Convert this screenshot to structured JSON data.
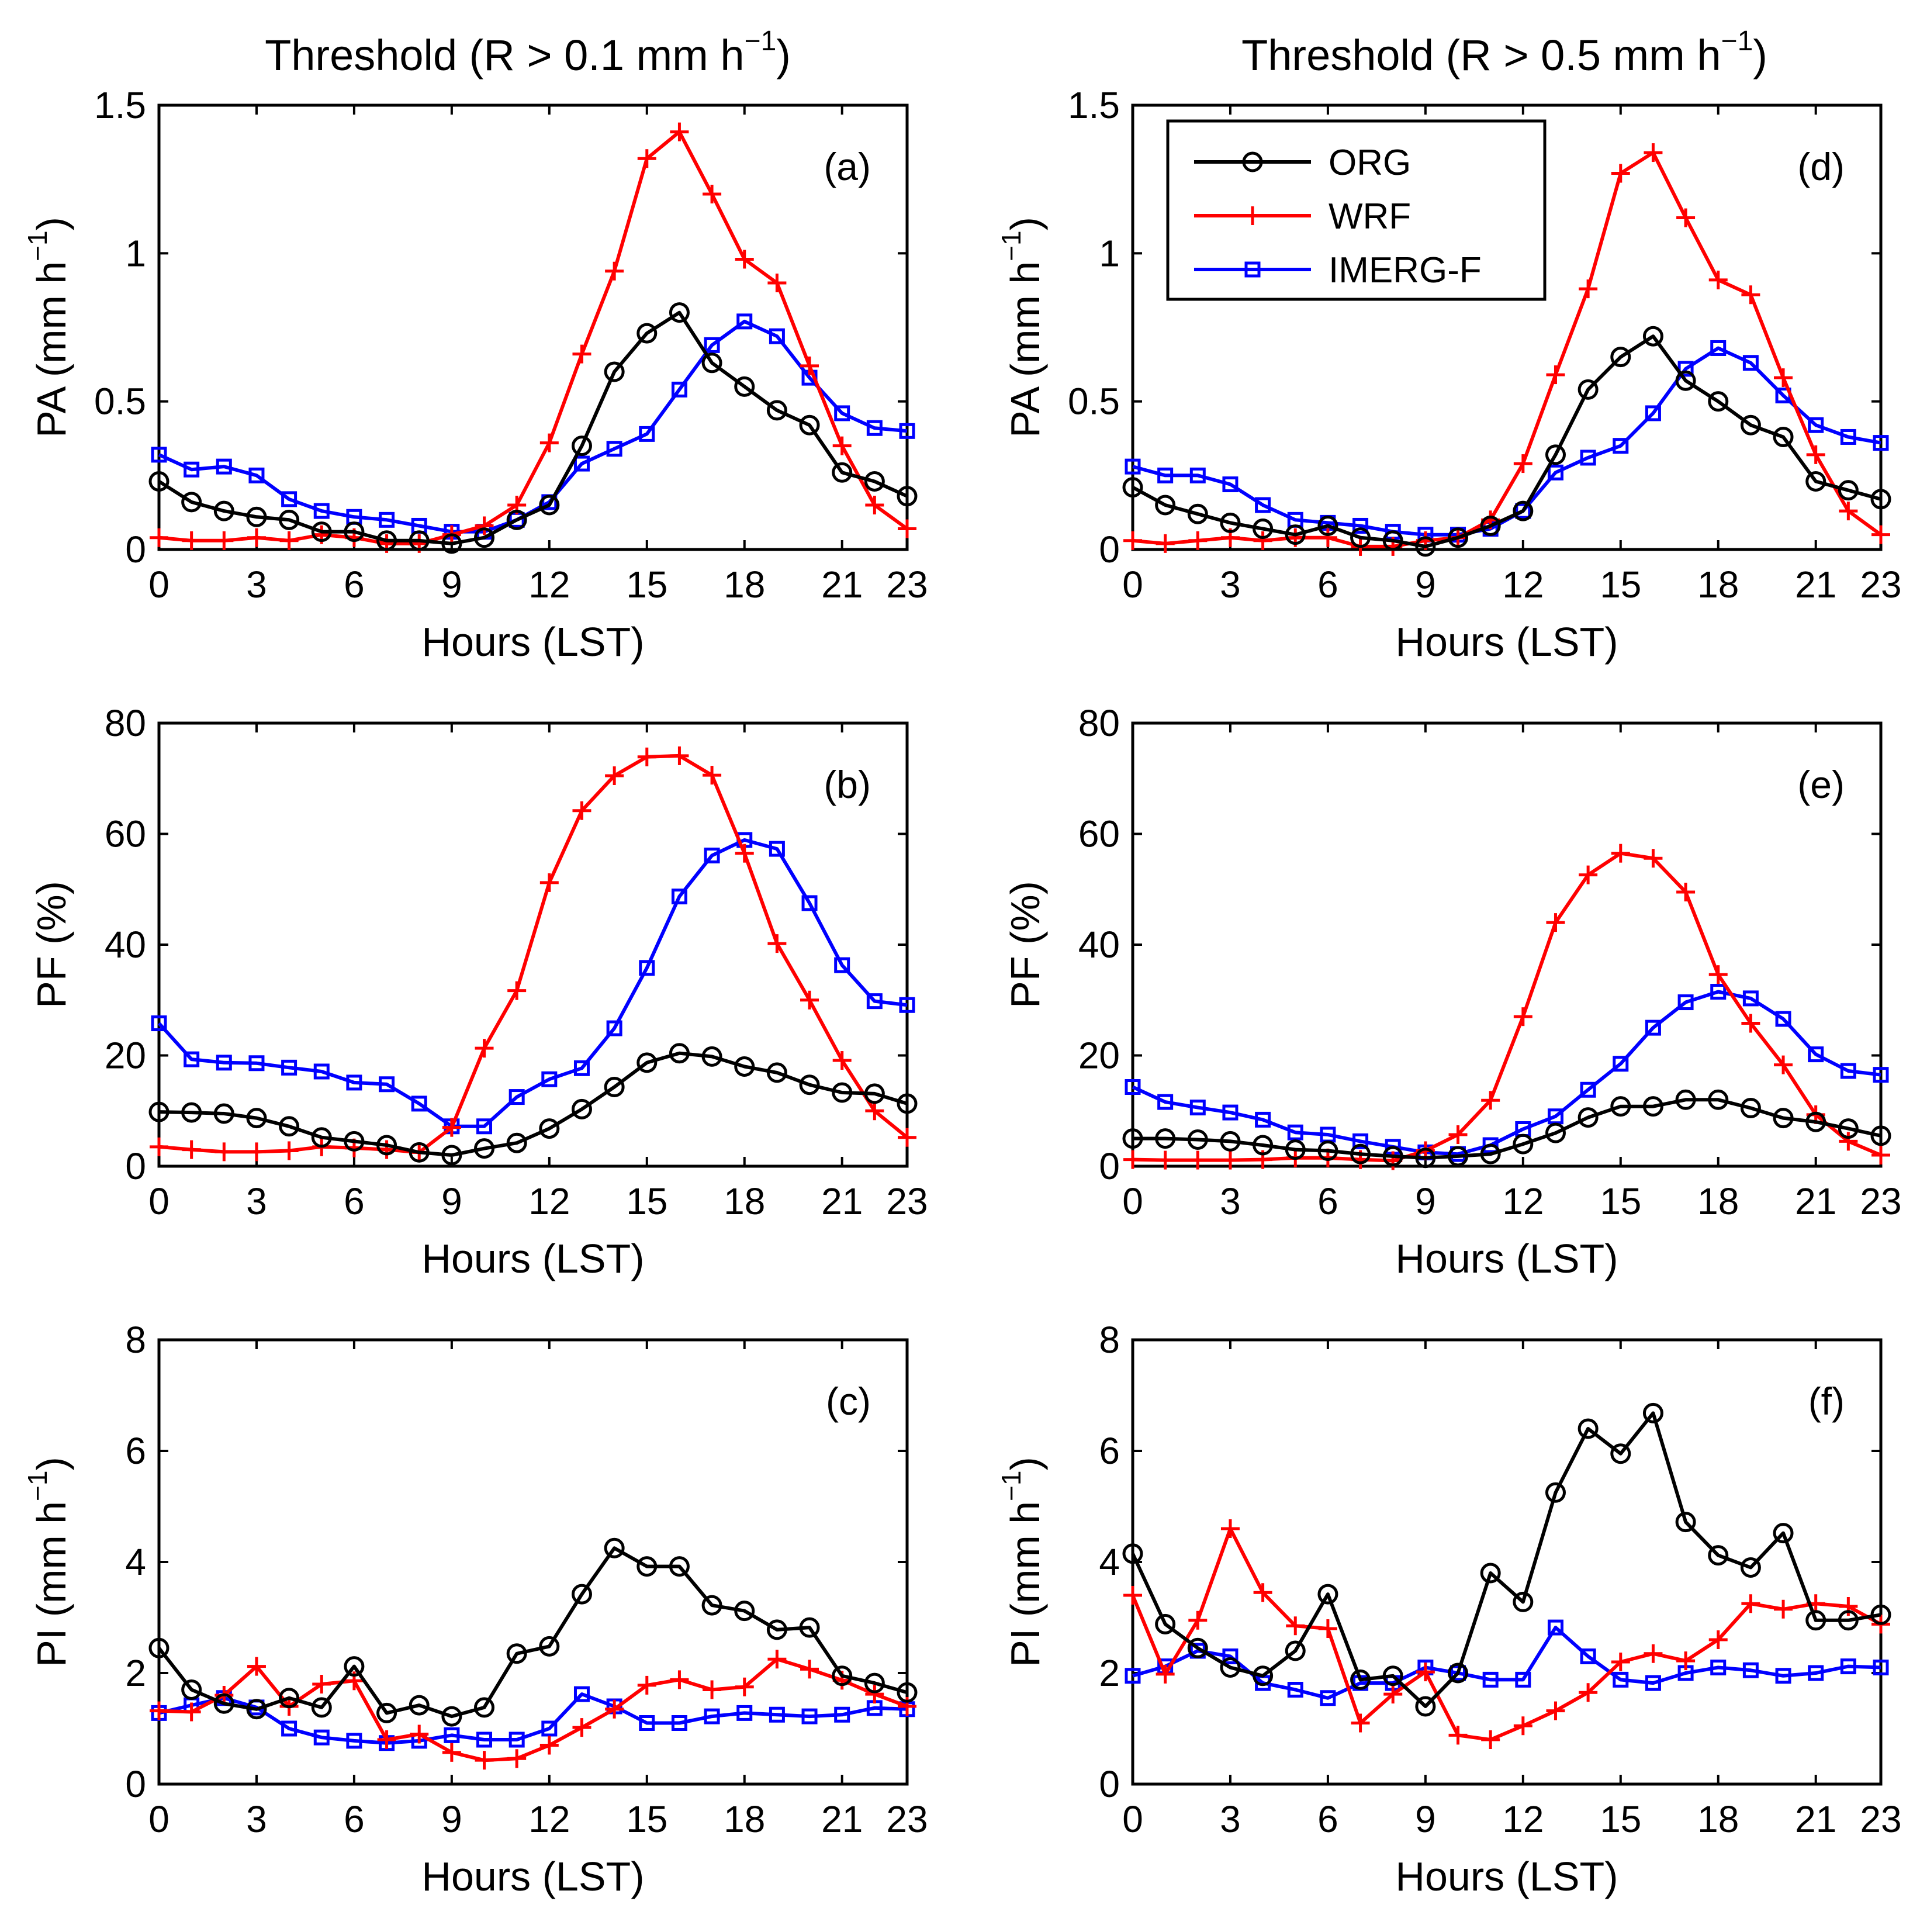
{
  "column_titles": [
    {
      "prefix": "Threshold (R > 0.1 mm h",
      "exponent": "−1",
      "suffix": ")"
    },
    {
      "prefix": "Threshold (R > 0.5 mm h",
      "exponent": "−1",
      "suffix": ")"
    }
  ],
  "legend": [
    {
      "label": "ORG",
      "series_key": "ORG"
    },
    {
      "label": "WRF",
      "series_key": "WRF"
    },
    {
      "label": "IMERG-F",
      "series_key": "IMERGF"
    }
  ],
  "styles": {
    "ORG": {
      "color": "#000000",
      "marker": "circle"
    },
    "WRF": {
      "color": "#ff0000",
      "marker": "plus"
    },
    "IMERGF": {
      "color": "#0000ff",
      "marker": "square"
    }
  },
  "chart_data": [
    {
      "id": "a",
      "type": "line",
      "tag": "(a)",
      "xlabel": "Hours (LST)",
      "ylabel": {
        "text": "PA (mm h",
        "exponent": "−1",
        "suffix": ")"
      },
      "xlim": [
        0,
        23
      ],
      "ylim": [
        0,
        1.5
      ],
      "xticks": [
        0,
        3,
        6,
        9,
        12,
        15,
        18,
        21,
        23
      ],
      "yticks": [
        0,
        0.5,
        1,
        1.5
      ],
      "ytick_labels": [
        "0",
        "0.5",
        "1",
        "1.5"
      ],
      "series": [
        {
          "key": "ORG",
          "values": [
            0.23,
            0.16,
            0.13,
            0.11,
            0.1,
            0.06,
            0.06,
            0.03,
            0.03,
            0.02,
            0.04,
            0.1,
            0.15,
            0.35,
            0.6,
            0.73,
            0.8,
            0.63,
            0.55,
            0.47,
            0.42,
            0.26,
            0.23,
            0.18
          ]
        },
        {
          "key": "WRF",
          "values": [
            0.04,
            0.03,
            0.03,
            0.04,
            0.03,
            0.05,
            0.04,
            0.02,
            0.02,
            0.05,
            0.08,
            0.15,
            0.36,
            0.66,
            0.94,
            1.32,
            1.41,
            1.2,
            0.98,
            0.9,
            0.62,
            0.35,
            0.15,
            0.07
          ]
        },
        {
          "key": "IMERGF",
          "values": [
            0.32,
            0.27,
            0.28,
            0.25,
            0.17,
            0.13,
            0.11,
            0.1,
            0.08,
            0.06,
            0.06,
            0.1,
            0.16,
            0.29,
            0.34,
            0.39,
            0.54,
            0.69,
            0.77,
            0.72,
            0.58,
            0.46,
            0.41,
            0.4
          ]
        }
      ]
    },
    {
      "id": "b",
      "type": "line",
      "tag": "(b)",
      "xlabel": "Hours (LST)",
      "ylabel": {
        "text": "PF (%)",
        "exponent": "",
        "suffix": ""
      },
      "xlim": [
        0,
        23
      ],
      "ylim": [
        0,
        80
      ],
      "xticks": [
        0,
        3,
        6,
        9,
        12,
        15,
        18,
        21,
        23
      ],
      "yticks": [
        0,
        20,
        40,
        60,
        80
      ],
      "ytick_labels": [
        "0",
        "20",
        "40",
        "60",
        "80"
      ],
      "series": [
        {
          "key": "ORG",
          "values": [
            9.8,
            9.7,
            9.5,
            8.7,
            7.2,
            5.2,
            4.5,
            3.8,
            2.5,
            2.0,
            3.2,
            4.2,
            6.8,
            10.3,
            14.3,
            18.7,
            20.4,
            19.8,
            18.0,
            16.9,
            14.7,
            13.3,
            13.1,
            11.3
          ]
        },
        {
          "key": "WRF",
          "values": [
            3.5,
            3.0,
            2.6,
            2.6,
            2.8,
            3.5,
            3.3,
            3.0,
            2.5,
            7.0,
            21.3,
            31.7,
            51.2,
            64.2,
            70.5,
            73.9,
            74.1,
            70.6,
            56.5,
            40.2,
            30.0,
            19.1,
            10.0,
            5.2
          ]
        },
        {
          "key": "IMERGF",
          "values": [
            25.8,
            19.3,
            18.7,
            18.6,
            17.8,
            17.1,
            15.1,
            14.8,
            11.3,
            7.2,
            7.2,
            12.5,
            15.7,
            17.7,
            24.9,
            35.8,
            48.7,
            56.1,
            58.9,
            57.3,
            47.5,
            36.3,
            29.8,
            29.1
          ]
        }
      ]
    },
    {
      "id": "c",
      "type": "line",
      "tag": "(c)",
      "xlabel": "Hours (LST)",
      "ylabel": {
        "text": "PI (mm h",
        "exponent": "−1",
        "suffix": ")"
      },
      "xlim": [
        0,
        23
      ],
      "ylim": [
        0,
        8
      ],
      "xticks": [
        0,
        3,
        6,
        9,
        12,
        15,
        18,
        21,
        23
      ],
      "yticks": [
        0,
        2,
        4,
        6,
        8
      ],
      "ytick_labels": [
        "0",
        "2",
        "4",
        "6",
        "8"
      ],
      "series": [
        {
          "key": "ORG",
          "values": [
            2.45,
            1.7,
            1.45,
            1.35,
            1.55,
            1.38,
            2.12,
            1.28,
            1.42,
            1.22,
            1.38,
            2.35,
            2.48,
            3.42,
            4.25,
            3.92,
            3.92,
            3.22,
            3.12,
            2.78,
            2.82,
            1.95,
            1.82,
            1.65
          ]
        },
        {
          "key": "WRF",
          "values": [
            1.32,
            1.3,
            1.6,
            2.12,
            1.4,
            1.8,
            1.86,
            0.8,
            0.9,
            0.57,
            0.43,
            0.46,
            0.7,
            1.02,
            1.35,
            1.78,
            1.88,
            1.7,
            1.75,
            2.25,
            2.07,
            1.87,
            1.62,
            1.4
          ]
        },
        {
          "key": "IMERGF",
          "values": [
            1.28,
            1.42,
            1.55,
            1.38,
            1.0,
            0.84,
            0.78,
            0.74,
            0.78,
            0.88,
            0.8,
            0.8,
            1.0,
            1.62,
            1.4,
            1.1,
            1.1,
            1.22,
            1.28,
            1.25,
            1.22,
            1.25,
            1.37,
            1.35
          ]
        }
      ]
    },
    {
      "id": "d",
      "type": "line",
      "tag": "(d)",
      "xlabel": "Hours (LST)",
      "ylabel": {
        "text": "PA (mm h",
        "exponent": "−1",
        "suffix": ")"
      },
      "xlim": [
        0,
        23
      ],
      "ylim": [
        0,
        1.5
      ],
      "xticks": [
        0,
        3,
        6,
        9,
        12,
        15,
        18,
        21,
        23
      ],
      "yticks": [
        0,
        0.5,
        1,
        1.5
      ],
      "ytick_labels": [
        "0",
        "0.5",
        "1",
        "1.5"
      ],
      "legend": true,
      "series": [
        {
          "key": "ORG",
          "values": [
            0.21,
            0.15,
            0.12,
            0.09,
            0.07,
            0.05,
            0.08,
            0.04,
            0.03,
            0.01,
            0.04,
            0.08,
            0.13,
            0.32,
            0.54,
            0.65,
            0.72,
            0.57,
            0.5,
            0.42,
            0.38,
            0.23,
            0.2,
            0.17
          ]
        },
        {
          "key": "WRF",
          "values": [
            0.03,
            0.02,
            0.03,
            0.04,
            0.03,
            0.04,
            0.04,
            0.01,
            0.01,
            0.03,
            0.04,
            0.1,
            0.29,
            0.59,
            0.88,
            1.27,
            1.34,
            1.12,
            0.91,
            0.86,
            0.58,
            0.32,
            0.13,
            0.05
          ]
        },
        {
          "key": "IMERGF",
          "values": [
            0.28,
            0.25,
            0.25,
            0.22,
            0.15,
            0.1,
            0.09,
            0.08,
            0.06,
            0.05,
            0.05,
            0.07,
            0.13,
            0.26,
            0.31,
            0.35,
            0.46,
            0.61,
            0.68,
            0.63,
            0.52,
            0.42,
            0.38,
            0.36
          ]
        }
      ]
    },
    {
      "id": "e",
      "type": "line",
      "tag": "(e)",
      "xlabel": "Hours (LST)",
      "ylabel": {
        "text": "PF (%)",
        "exponent": "",
        "suffix": ""
      },
      "xlim": [
        0,
        23
      ],
      "ylim": [
        0,
        80
      ],
      "xticks": [
        0,
        3,
        6,
        9,
        12,
        15,
        18,
        21,
        23
      ],
      "yticks": [
        0,
        20,
        40,
        60,
        80
      ],
      "ytick_labels": [
        "0",
        "20",
        "40",
        "60",
        "80"
      ],
      "series": [
        {
          "key": "ORG",
          "values": [
            5.0,
            5.0,
            4.8,
            4.5,
            3.8,
            3.0,
            2.8,
            2.2,
            1.8,
            1.5,
            1.8,
            2.2,
            4.0,
            6.0,
            8.8,
            10.8,
            10.8,
            12.0,
            12.0,
            10.5,
            8.7,
            8.0,
            6.8,
            5.5
          ]
        },
        {
          "key": "WRF",
          "values": [
            1.2,
            1.1,
            1.1,
            1.1,
            1.2,
            1.5,
            1.5,
            1.2,
            1.0,
            2.8,
            5.7,
            11.9,
            27.0,
            44.0,
            52.6,
            56.5,
            55.6,
            49.5,
            34.6,
            25.8,
            18.3,
            9.3,
            4.5,
            2.0
          ]
        },
        {
          "key": "IMERGF",
          "values": [
            14.3,
            11.6,
            10.6,
            9.7,
            8.4,
            6.1,
            5.7,
            4.5,
            3.5,
            2.5,
            2.2,
            3.8,
            6.7,
            9.0,
            13.8,
            18.5,
            25.0,
            29.6,
            31.5,
            30.3,
            26.6,
            20.2,
            17.2,
            16.5
          ]
        }
      ]
    },
    {
      "id": "f",
      "type": "line",
      "tag": "(f)",
      "xlabel": "Hours (LST)",
      "ylabel": {
        "text": "PI (mm h",
        "exponent": "−1",
        "suffix": ")"
      },
      "xlim": [
        0,
        23
      ],
      "ylim": [
        0,
        8
      ],
      "xticks": [
        0,
        3,
        6,
        9,
        12,
        15,
        18,
        21,
        23
      ],
      "yticks": [
        0,
        2,
        4,
        6,
        8
      ],
      "ytick_labels": [
        "0",
        "2",
        "4",
        "6",
        "8"
      ],
      "series": [
        {
          "key": "ORG",
          "values": [
            4.15,
            2.88,
            2.45,
            2.1,
            1.95,
            2.4,
            3.42,
            1.88,
            1.95,
            1.4,
            2.0,
            3.8,
            3.28,
            5.25,
            6.4,
            5.95,
            6.68,
            4.72,
            4.12,
            3.9,
            4.52,
            2.95,
            2.95,
            3.05
          ]
        },
        {
          "key": "WRF",
          "values": [
            3.4,
            1.98,
            2.95,
            4.6,
            3.45,
            2.85,
            2.8,
            1.1,
            1.62,
            2.02,
            0.88,
            0.8,
            1.05,
            1.32,
            1.65,
            2.2,
            2.35,
            2.22,
            2.6,
            3.25,
            3.15,
            3.25,
            3.2,
            2.88
          ]
        },
        {
          "key": "IMERGF",
          "values": [
            1.95,
            2.12,
            2.4,
            2.3,
            1.82,
            1.7,
            1.55,
            1.82,
            1.82,
            2.1,
            2.0,
            1.88,
            1.88,
            2.82,
            2.3,
            1.88,
            1.82,
            2.0,
            2.1,
            2.05,
            1.95,
            2.0,
            2.12,
            2.1
          ]
        }
      ]
    }
  ]
}
